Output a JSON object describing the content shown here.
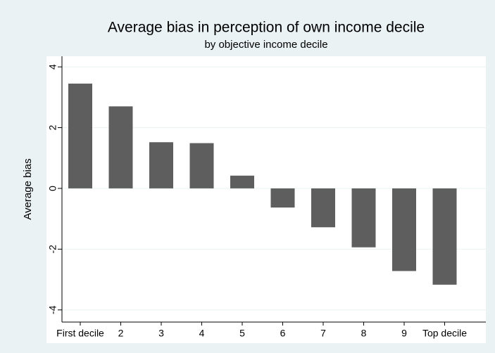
{
  "chart_data": {
    "type": "bar",
    "title": "Average bias in perception of own income decile",
    "subtitle": "by objective income decile",
    "y_label": "Average bias",
    "categories": [
      "First decile",
      "2",
      "3",
      "4",
      "5",
      "6",
      "7",
      "8",
      "9",
      "Top decile"
    ],
    "values": [
      3.45,
      2.7,
      1.52,
      1.49,
      0.42,
      -0.63,
      -1.28,
      -1.94,
      -2.72,
      -3.17
    ],
    "color": "#5e5e5e",
    "ylim": [
      -4.4,
      4.35
    ],
    "yticks": [
      -4,
      -2,
      0,
      2,
      4
    ],
    "grid": true
  }
}
